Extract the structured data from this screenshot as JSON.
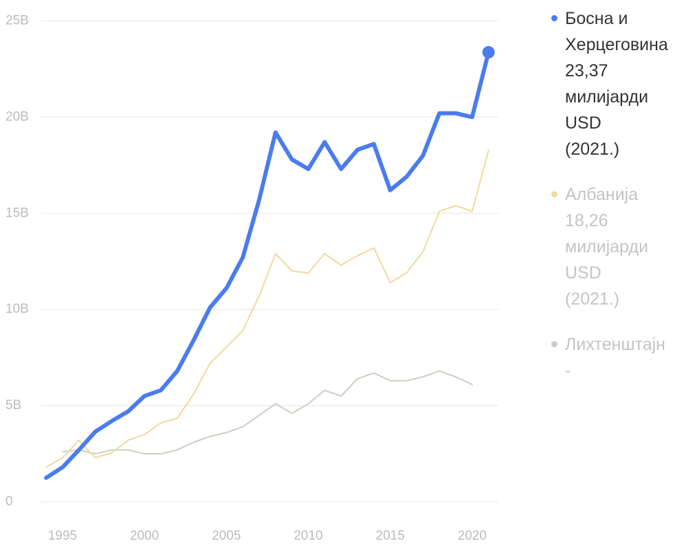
{
  "chart_data": {
    "type": "line",
    "x": [
      1994,
      1995,
      1996,
      1997,
      1998,
      1999,
      2000,
      2001,
      2002,
      2003,
      2004,
      2005,
      2006,
      2007,
      2008,
      2009,
      2010,
      2011,
      2012,
      2013,
      2014,
      2015,
      2016,
      2017,
      2018,
      2019,
      2020,
      2021
    ],
    "xlim": [
      1993.7,
      2021.6
    ],
    "xticks": [
      1995,
      2000,
      2005,
      2010,
      2015,
      2020
    ],
    "ylim": [
      0,
      25.3
    ],
    "yticks": [
      0,
      {
        "value": 5,
        "label": "5B"
      },
      {
        "value": 10,
        "label": "10B"
      },
      {
        "value": 15,
        "label": "15B"
      },
      {
        "value": 20,
        "label": "20B"
      },
      {
        "value": 25,
        "label": "25B"
      }
    ],
    "grid": true,
    "series": [
      {
        "name": "Босна и Херцеговина",
        "color": "#4a7cf0",
        "legend_value": "23,37 милијарди USD",
        "legend_year": "(2021.)",
        "values": [
          1.25,
          1.8,
          2.7,
          3.65,
          4.2,
          4.7,
          5.5,
          5.8,
          6.8,
          8.4,
          10.1,
          11.1,
          12.7,
          15.7,
          19.2,
          17.8,
          17.3,
          18.7,
          17.3,
          18.3,
          18.6,
          16.2,
          16.9,
          18.0,
          20.2,
          20.2,
          20.0,
          23.37
        ]
      },
      {
        "name": "Албанија",
        "color": "#f2d89c",
        "legend_value": "18,26 милијарди USD",
        "legend_year": "(2021.)",
        "values": [
          1.8,
          2.3,
          3.2,
          2.3,
          2.55,
          3.2,
          3.5,
          4.1,
          4.35,
          5.6,
          7.2,
          8.05,
          8.9,
          10.7,
          12.9,
          12.0,
          11.9,
          12.9,
          12.3,
          12.8,
          13.2,
          11.4,
          11.9,
          13.0,
          15.1,
          15.4,
          15.1,
          18.26
        ]
      },
      {
        "name": "Лихтенштајн",
        "color": "#c9cfc2",
        "legend_value": "-",
        "values": [
          null,
          2.6,
          2.7,
          2.5,
          2.7,
          2.7,
          2.5,
          2.5,
          2.7,
          3.1,
          3.4,
          3.6,
          3.9,
          4.5,
          5.1,
          4.6,
          5.1,
          5.8,
          5.5,
          6.4,
          6.7,
          6.3,
          6.3,
          6.5,
          6.8,
          6.5,
          6.1,
          null
        ]
      }
    ]
  }
}
